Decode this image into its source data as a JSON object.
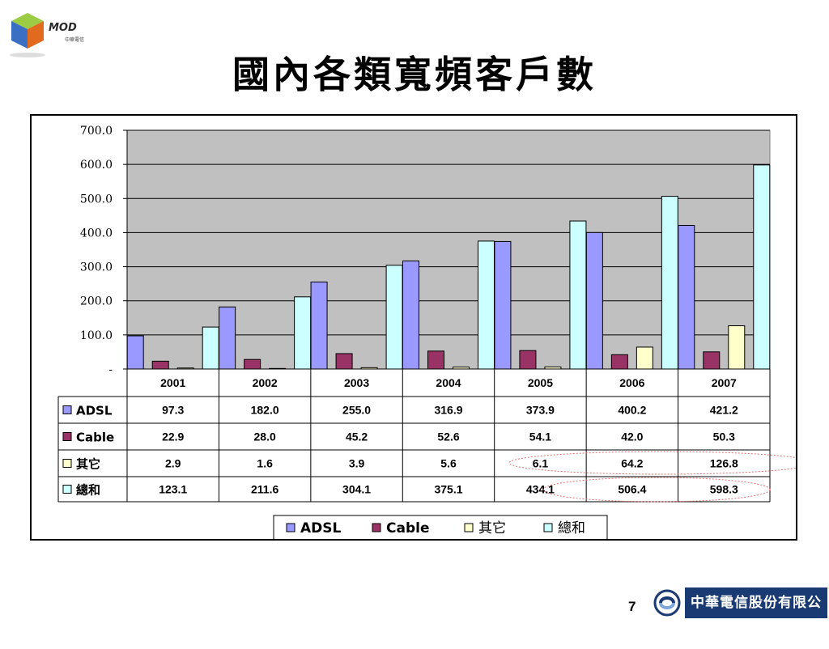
{
  "slide": {
    "title": "國內各類寬頻客戶數",
    "page_number": "7",
    "logo_text": "MOD",
    "logo_subtext": "中華電信",
    "company_name": "中華電信股份有限公司"
  },
  "colors": {
    "adsl": "#9999ff",
    "cable": "#993366",
    "other": "#ffffcc",
    "total": "#ccffff",
    "plot_bg": "#c0c0c0",
    "company_box": "#1a3a73"
  },
  "chart_data": {
    "type": "bar",
    "categories": [
      "2001",
      "2002",
      "2003",
      "2004",
      "2005",
      "2006",
      "2007"
    ],
    "series": [
      {
        "name": "ADSL",
        "color": "#9999ff",
        "values": [
          97.3,
          182.0,
          255.0,
          316.9,
          373.9,
          400.2,
          421.2
        ],
        "labels": [
          "97.3",
          "182.0",
          "255.0",
          "316.9",
          "373.9",
          "400.2",
          "421.2"
        ]
      },
      {
        "name": "Cable",
        "color": "#993366",
        "values": [
          22.9,
          28.0,
          45.2,
          52.6,
          54.1,
          42.0,
          50.3
        ],
        "labels": [
          "22.9",
          "28.0",
          "45.2",
          "52.6",
          "54.1",
          "42.0",
          "50.3"
        ]
      },
      {
        "name": "其它",
        "color": "#ffffcc",
        "values": [
          2.9,
          1.6,
          3.9,
          5.6,
          6.1,
          64.2,
          126.8
        ],
        "labels": [
          "2.9",
          "1.6",
          "3.9",
          "5.6",
          "6.1",
          "64.2",
          "126.8"
        ]
      },
      {
        "name": "總和",
        "color": "#ccffff",
        "values": [
          123.1,
          211.6,
          304.1,
          375.1,
          434.1,
          506.4,
          598.3
        ],
        "labels": [
          "123.1",
          "211.6",
          "304.1",
          "375.1",
          "434.1",
          "506.4",
          "598.3"
        ]
      }
    ],
    "ylim": [
      0,
      700
    ],
    "yticks": [
      0,
      100,
      200,
      300,
      400,
      500,
      600,
      700
    ],
    "ytick_labels": [
      "-",
      "100.0",
      "200.0",
      "300.0",
      "400.0",
      "500.0",
      "600.0",
      "700.0"
    ],
    "grid": true,
    "legend": "bottom",
    "data_table": true
  }
}
